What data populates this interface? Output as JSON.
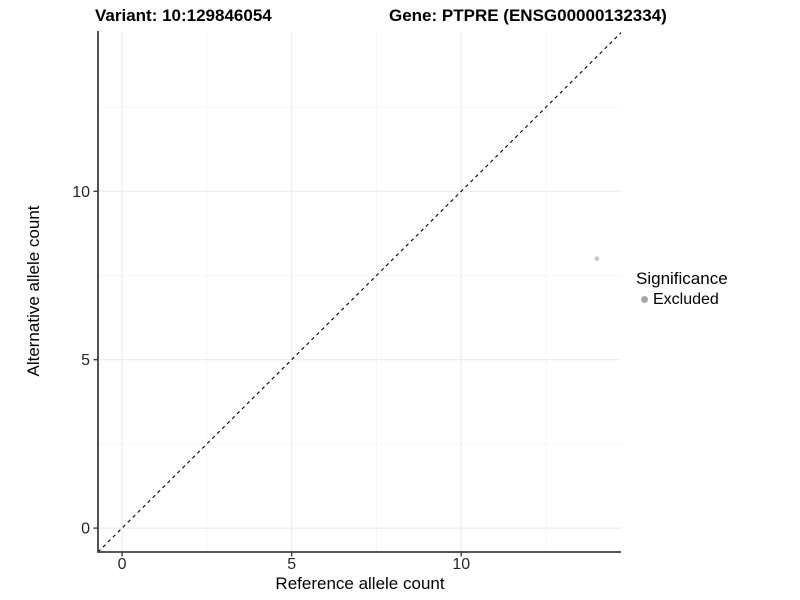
{
  "header": {
    "variant_title": "Variant: 10:129846054",
    "gene_title": "Gene: PTPRE (ENSG00000132334)"
  },
  "legend": {
    "title": "Significance",
    "items": [
      {
        "label": "Excluded",
        "color": "#a8a8a8"
      }
    ]
  },
  "chart_data": {
    "type": "scatter",
    "title": "Variant: 10:129846054 / Gene: PTPRE (ENSG00000132334)",
    "xlabel": "Reference allele count",
    "ylabel": "Alternative allele count",
    "xlim": [
      -0.71,
      14.71
    ],
    "ylim": [
      -0.71,
      14.76
    ],
    "x_ticks": [
      0,
      5,
      10
    ],
    "x_tick_labels": [
      "0",
      "5",
      "10"
    ],
    "x_minor_ticks": [
      2.5,
      7.5,
      12.5
    ],
    "y_ticks": [
      0,
      5,
      10
    ],
    "y_tick_labels": [
      "0",
      "5",
      "10"
    ],
    "y_minor_ticks": [
      2.5,
      7.5,
      12.5
    ],
    "grid": true,
    "legend_position": "right",
    "series": [
      {
        "name": "Excluded",
        "color": "#c8c8c8",
        "marker": "circle",
        "marker_radius": 2.4,
        "points": [
          {
            "x": 14,
            "y": 8
          }
        ]
      }
    ],
    "reference_line": {
      "type": "identity",
      "equation": "y = x",
      "style": "dashed",
      "color": "#000000"
    },
    "colors": {
      "axis_line": "#3f3f3f",
      "grid_major": "#ececec",
      "grid_minor": "#f6f6f6",
      "tick_label": "#262626"
    }
  }
}
